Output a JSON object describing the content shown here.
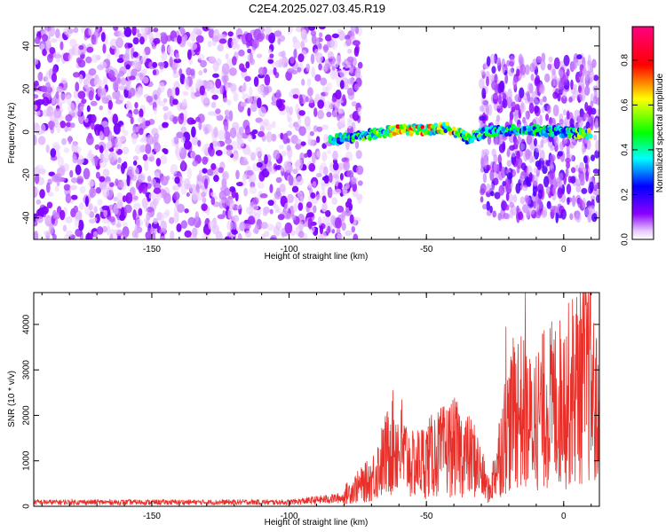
{
  "figure_title": "C2E4.2025.027.03.45.R19",
  "chart_data": [
    {
      "type": "heatmap",
      "title": "",
      "xlabel": "Height of straight line (km)",
      "ylabel": "Frequency (Hz)",
      "xlim": [
        -193,
        13
      ],
      "ylim": [
        -50,
        49
      ],
      "x_ticks": [
        -150,
        -100,
        -50,
        0
      ],
      "y_ticks": [
        -40,
        -20,
        0,
        20,
        40
      ],
      "colorbar": {
        "label": "Normalized spectral amplitude",
        "range": [
          0,
          0.95
        ],
        "ticks": [
          0.0,
          0.2,
          0.4,
          0.6,
          0.8
        ],
        "colormap": [
          "#ffffff",
          "#8b00ff",
          "#0000ff",
          "#00ffff",
          "#00ff00",
          "#ffff00",
          "#ff0000",
          "#ff0080"
        ]
      },
      "noise_region": {
        "x_range": [
          -193,
          -74
        ],
        "freq_range": [
          -50,
          49
        ],
        "typical_amplitude": 0.1
      },
      "signal_band": {
        "description_points": [
          {
            "x": -85,
            "freq": -4,
            "amp": 0.45
          },
          {
            "x": -75,
            "freq": -2,
            "amp": 0.55
          },
          {
            "x": -65,
            "freq": 0,
            "amp": 0.7
          },
          {
            "x": -58,
            "freq": 1,
            "amp": 0.9
          },
          {
            "x": -50,
            "freq": 1,
            "amp": 0.85
          },
          {
            "x": -42,
            "freq": 2,
            "amp": 0.7
          },
          {
            "x": -35,
            "freq": -3,
            "amp": 0.6
          },
          {
            "x": -28,
            "freq": 0,
            "amp": 0.5
          },
          {
            "x": -15,
            "freq": 1,
            "amp": 0.5
          },
          {
            "x": 0,
            "freq": 0,
            "amp": 0.5
          },
          {
            "x": 10,
            "freq": -1,
            "amp": 0.75
          }
        ]
      }
    },
    {
      "type": "line",
      "title": "",
      "xlabel": "Height of straight line (km)",
      "ylabel": "SNR (10 * v/v)",
      "xlim": [
        -193,
        13
      ],
      "ylim": [
        0,
        4700
      ],
      "x_ticks": [
        -150,
        -100,
        -50,
        0
      ],
      "y_ticks": [
        0,
        1000,
        2000,
        3000,
        4000
      ],
      "series_color": "#e8302a",
      "envelope": [
        {
          "x": -193,
          "y": 120
        },
        {
          "x": -100,
          "y": 120
        },
        {
          "x": -80,
          "y": 250
        },
        {
          "x": -70,
          "y": 600
        },
        {
          "x": -62,
          "y": 1400
        },
        {
          "x": -55,
          "y": 900
        },
        {
          "x": -48,
          "y": 1100
        },
        {
          "x": -40,
          "y": 1300
        },
        {
          "x": -32,
          "y": 1000
        },
        {
          "x": -27,
          "y": 300
        },
        {
          "x": -22,
          "y": 1500
        },
        {
          "x": -17,
          "y": 2200
        },
        {
          "x": -12,
          "y": 1800
        },
        {
          "x": -6,
          "y": 2200
        },
        {
          "x": 0,
          "y": 2300
        },
        {
          "x": 5,
          "y": 2700
        },
        {
          "x": 9,
          "y": 3000
        },
        {
          "x": 13,
          "y": 1600
        }
      ],
      "peaks": [
        {
          "x": -63,
          "y": 1800
        },
        {
          "x": -59,
          "y": 2350
        },
        {
          "x": -47,
          "y": 1900
        },
        {
          "x": -42,
          "y": 2100
        },
        {
          "x": -21,
          "y": 3950
        },
        {
          "x": -18,
          "y": 3500
        },
        {
          "x": -14,
          "y": 4700
        },
        {
          "x": -10,
          "y": 3300
        },
        {
          "x": 0,
          "y": 3600
        },
        {
          "x": 9,
          "y": 4700
        },
        {
          "x": 12,
          "y": 3700
        }
      ]
    }
  ]
}
